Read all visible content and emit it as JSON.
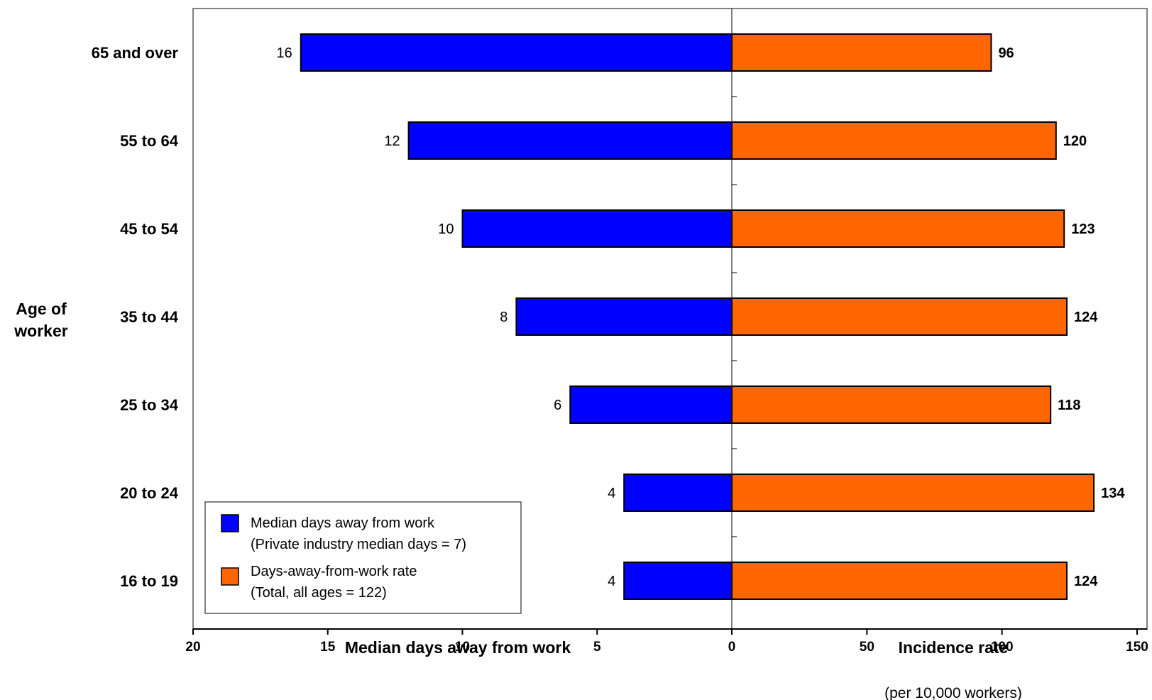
{
  "chart_data": {
    "type": "bar",
    "layout": "butterfly",
    "y_axis_title": [
      "Age of",
      "worker"
    ],
    "categories": [
      "65 and over",
      "55 to 64",
      "45 to 54",
      "35 to 44",
      "25 to 34",
      "20 to 24",
      "16 to 19"
    ],
    "series": [
      {
        "name": "Median days away from work",
        "legend_detail": "(Private industry median days = 7)",
        "side": "left",
        "color": "#0000ff",
        "values": [
          16,
          12,
          10,
          8,
          6,
          4,
          4
        ]
      },
      {
        "name": "Days-away-from-work rate",
        "legend_detail": "(Total, all ages = 122)",
        "side": "right",
        "color": "#ff6600",
        "values": [
          96,
          120,
          123,
          124,
          118,
          134,
          124
        ]
      }
    ],
    "left_axis": {
      "label": "Median days away from work",
      "range": [
        20,
        0
      ],
      "ticks": [
        "20",
        "15",
        "10",
        "5",
        "0"
      ]
    },
    "right_axis": {
      "label": "Incidence rate",
      "sublabel": "(per 10,000 workers)",
      "range": [
        0,
        150
      ],
      "ticks": [
        "50",
        "100",
        "150"
      ]
    },
    "legend_position": "bottom-left",
    "grid": false
  }
}
